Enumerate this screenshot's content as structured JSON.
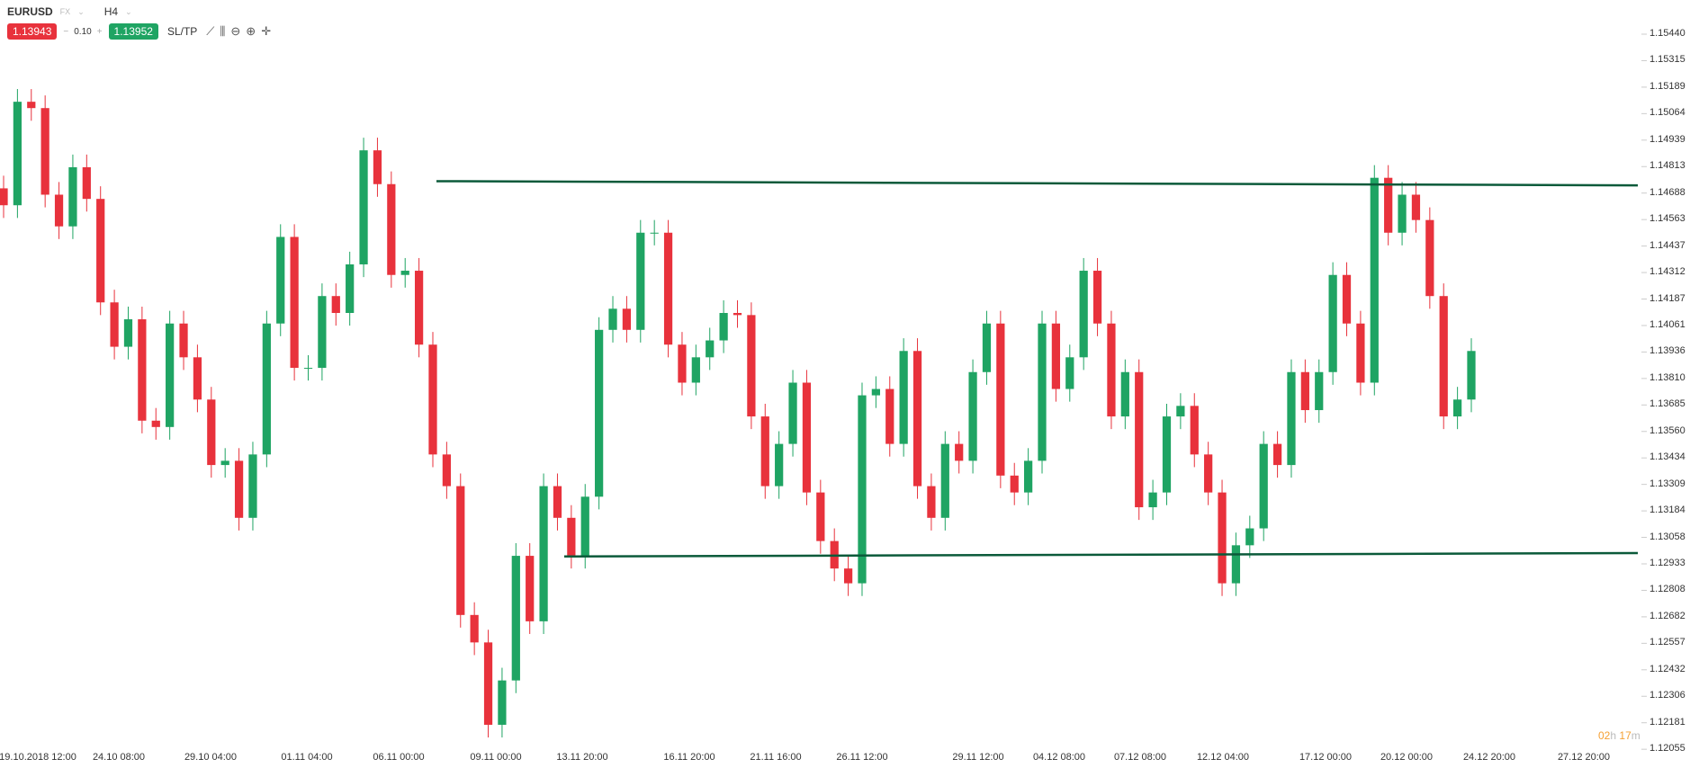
{
  "header": {
    "symbol": "EURUSD",
    "market": "FX",
    "timeframe": "H4",
    "sell_price": "1.13943",
    "buy_price": "1.13952",
    "volume": "0.10",
    "minus": "−",
    "plus": "+",
    "sltp": "SL/TP",
    "tools": [
      {
        "icon": "line-chart-icon",
        "glyph": "⟋"
      },
      {
        "icon": "candles-icon",
        "glyph": "⫼"
      },
      {
        "icon": "zoom-out-icon",
        "glyph": "⊖"
      },
      {
        "icon": "zoom-in-icon",
        "glyph": "⊕"
      },
      {
        "icon": "crosshair-icon",
        "glyph": "✛"
      }
    ]
  },
  "timer": {
    "h": "02",
    "hu": "h",
    "m": "17",
    "mu": "m"
  },
  "colors": {
    "up": "#1fa463",
    "down": "#e8323c",
    "level_line": "#0b5a3a",
    "sell": "#e8323c",
    "buy": "#1fa463"
  },
  "chart_data": {
    "type": "candlestick",
    "ylim": [
      1.12055,
      1.1544
    ],
    "y_ticks": [
      "1.15440",
      "1.15315",
      "1.15189",
      "1.15064",
      "1.14939",
      "1.14813",
      "1.14688",
      "1.14563",
      "1.14437",
      "1.14312",
      "1.14187",
      "1.14061",
      "1.13936",
      "1.13810",
      "1.13685",
      "1.13560",
      "1.13434",
      "1.13309",
      "1.13184",
      "1.13058",
      "1.12933",
      "1.12808",
      "1.12682",
      "1.12557",
      "1.12432",
      "1.12306",
      "1.12181",
      "1.12055"
    ],
    "x_ticks": [
      "19.10.2018 12:00",
      "24.10 08:00",
      "29.10 04:00",
      "01.11 04:00",
      "06.11 00:00",
      "09.11 00:00",
      "13.11 20:00",
      "16.11 20:00",
      "21.11 16:00",
      "26.11 12:00",
      "29.11 12:00",
      "04.12 08:00",
      "07.12 08:00",
      "12.12 04:00",
      "17.12 00:00",
      "20.12 00:00",
      "24.12 20:00",
      "27.12 20:00"
    ],
    "closes": [
      1.1463,
      1.1512,
      1.1509,
      1.1468,
      1.1453,
      1.1481,
      1.1466,
      1.1417,
      1.1396,
      1.1409,
      1.1361,
      1.1358,
      1.1407,
      1.1391,
      1.1371,
      1.134,
      1.1342,
      1.1315,
      1.1345,
      1.1407,
      1.1448,
      1.1386,
      1.1386,
      1.142,
      1.1412,
      1.1435,
      1.1489,
      1.1473,
      1.143,
      1.1432,
      1.1397,
      1.1345,
      1.133,
      1.1269,
      1.1256,
      1.1217,
      1.1238,
      1.1297,
      1.1266,
      1.133,
      1.1315,
      1.1297,
      1.1325,
      1.1404,
      1.1414,
      1.1404,
      1.145,
      1.145,
      1.1397,
      1.1379,
      1.1391,
      1.1399,
      1.1412,
      1.1411,
      1.1363,
      1.133,
      1.135,
      1.1379,
      1.1327,
      1.1304,
      1.1291,
      1.1284,
      1.1373,
      1.1376,
      1.135,
      1.1394,
      1.133,
      1.1315,
      1.135,
      1.1342,
      1.1384,
      1.1407,
      1.1335,
      1.1327,
      1.1342,
      1.1407,
      1.1376,
      1.1391,
      1.1432,
      1.1407,
      1.1363,
      1.1384,
      1.132,
      1.1327,
      1.1363,
      1.1368,
      1.1345,
      1.1327,
      1.1284,
      1.1302,
      1.131,
      1.135,
      1.134,
      1.1384,
      1.1366,
      1.1384,
      1.143,
      1.1407,
      1.1379,
      1.1476,
      1.145,
      1.1468,
      1.1456,
      1.142,
      1.1363,
      1.1371,
      1.1394
    ],
    "levels": [
      {
        "name": "resistance",
        "from": 1.14744,
        "to": 1.14724
      },
      {
        "name": "support",
        "from": 1.12967,
        "to": 1.12983
      }
    ]
  }
}
